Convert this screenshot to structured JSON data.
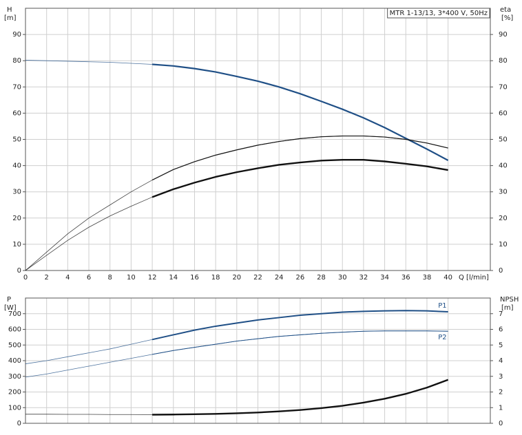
{
  "chart_data": [
    {
      "type": "line",
      "title": "MTR 1-13/13, 3*400 V, 50Hz",
      "ylabel": "H",
      "yunit": "[m]",
      "y2label": "eta",
      "y2unit": "[%]",
      "xlabel": "Q [l/min]",
      "x": [
        0,
        2,
        4,
        6,
        8,
        10,
        12,
        14,
        16,
        18,
        20,
        22,
        24,
        26,
        28,
        30,
        32,
        34,
        36,
        38,
        40
      ],
      "xlim": [
        0,
        44
      ],
      "xticks": [
        0,
        2,
        4,
        6,
        8,
        10,
        12,
        14,
        16,
        18,
        20,
        22,
        24,
        26,
        28,
        30,
        32,
        34,
        36,
        38,
        40
      ],
      "ylim": [
        0,
        100
      ],
      "yticks": [
        0,
        10,
        20,
        30,
        40,
        50,
        60,
        70,
        80,
        90
      ],
      "y2lim": [
        0,
        100
      ],
      "y2ticks": [
        0,
        10,
        20,
        30,
        40,
        50,
        60,
        70,
        80,
        90
      ],
      "grid": true,
      "bold_from": 11.6,
      "series": [
        {
          "color": "#1f4f86",
          "width": 2.2,
          "values": [
            80.2,
            80,
            79.8,
            79.6,
            79.4,
            79,
            78.6,
            78,
            77,
            75.7,
            74,
            72.2,
            70,
            67.4,
            64.5,
            61.5,
            58.2,
            54.5,
            50.4,
            46.3,
            42
          ]
        },
        {
          "color": "#111111",
          "width": 1.2,
          "axis": "y2",
          "values": [
            0,
            7,
            14,
            20,
            25,
            30,
            34.5,
            38.5,
            41.5,
            44,
            46,
            47.8,
            49.2,
            50.3,
            51,
            51.3,
            51.3,
            50.9,
            50,
            48.6,
            46.7
          ]
        },
        {
          "color": "#111111",
          "width": 2.4,
          "axis": "y2",
          "values": [
            0,
            5.8,
            11.5,
            16.5,
            20.8,
            24.5,
            28,
            31,
            33.5,
            35.7,
            37.5,
            39,
            40.3,
            41.2,
            41.9,
            42.2,
            42.2,
            41.6,
            40.7,
            39.7,
            38.3
          ]
        }
      ]
    },
    {
      "type": "line",
      "ylabel": "P",
      "yunit": "[W]",
      "y2label": "NPSH",
      "y2unit": "[m]",
      "x": [
        0,
        2,
        4,
        6,
        8,
        10,
        12,
        14,
        16,
        18,
        20,
        22,
        24,
        26,
        28,
        30,
        32,
        34,
        36,
        38,
        40
      ],
      "xlim": [
        0,
        44
      ],
      "xticks": [
        0,
        2,
        4,
        6,
        8,
        10,
        12,
        14,
        16,
        18,
        20,
        22,
        24,
        26,
        28,
        30,
        32,
        34,
        36,
        38,
        40
      ],
      "ylim": [
        0,
        800
      ],
      "yticks": [
        0,
        100,
        200,
        300,
        400,
        500,
        600,
        700
      ],
      "y2lim": [
        0,
        8
      ],
      "y2ticks": [
        0,
        1,
        2,
        3,
        4,
        5,
        6,
        7
      ],
      "grid": true,
      "bold_from": 11.6,
      "series": [
        {
          "name": "P1",
          "color": "#1f4f86",
          "width": 2,
          "values": [
            380,
            400,
            425,
            450,
            475,
            505,
            535,
            565,
            595,
            620,
            640,
            660,
            675,
            690,
            700,
            710,
            715,
            718,
            720,
            718,
            712
          ]
        },
        {
          "name": "P2",
          "color": "#1f4f86",
          "width": 1,
          "values": [
            295,
            315,
            340,
            365,
            390,
            415,
            440,
            465,
            485,
            505,
            525,
            540,
            555,
            565,
            575,
            582,
            588,
            590,
            590,
            590,
            588
          ]
        },
        {
          "color": "#111111",
          "width": 2.4,
          "axis": "y2",
          "values": [
            0.58,
            0.58,
            0.57,
            0.57,
            0.56,
            0.56,
            0.55,
            0.56,
            0.58,
            0.6,
            0.64,
            0.69,
            0.76,
            0.85,
            0.97,
            1.12,
            1.32,
            1.57,
            1.88,
            2.28,
            2.78
          ]
        }
      ]
    }
  ]
}
